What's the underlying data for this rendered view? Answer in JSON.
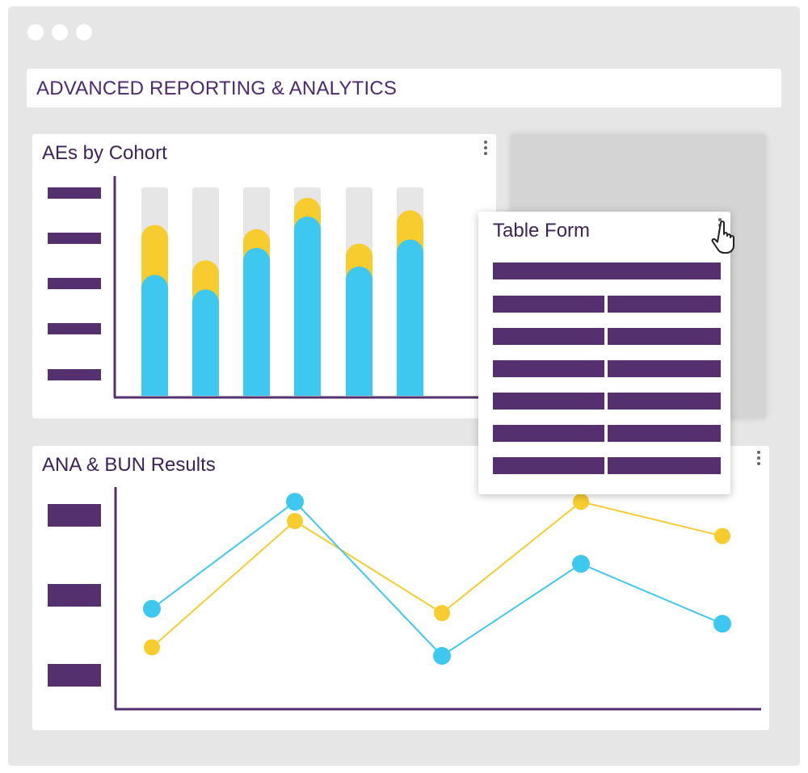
{
  "window": {
    "title": "ADVANCED REPORTING & ANALYTICS"
  },
  "colors": {
    "accent_purple": "#54306f",
    "series_blue": "#3ec8f0",
    "series_yellow": "#f6cc2f",
    "bar_track": "#e6e6e6"
  },
  "panels": {
    "aes_by_cohort": {
      "title": "AEs by Cohort"
    },
    "ana_bun_results": {
      "title": "ANA & BUN Results"
    },
    "table_form": {
      "title": "Table Form"
    }
  },
  "chart_data": [
    {
      "type": "bar",
      "title": "AEs by Cohort",
      "categories": [
        "",
        "",
        "",
        "",
        "",
        ""
      ],
      "series": [
        {
          "values": [
            0.58,
            0.51,
            0.71,
            0.86,
            0.62,
            0.75
          ]
        },
        {
          "values": [
            0.82,
            0.65,
            0.8,
            0.95,
            0.73,
            0.89
          ]
        }
      ],
      "ylim": [
        0,
        1
      ],
      "note_track": 1.0
    },
    {
      "type": "line",
      "title": "ANA & BUN Results",
      "x": [
        1,
        2,
        3,
        4,
        5
      ],
      "series": [
        {
          "values": [
            0.42,
            0.92,
            0.2,
            0.63,
            0.35
          ]
        },
        {
          "values": [
            0.24,
            0.83,
            0.4,
            0.92,
            0.76
          ]
        }
      ],
      "ylim": [
        0,
        1
      ]
    }
  ]
}
